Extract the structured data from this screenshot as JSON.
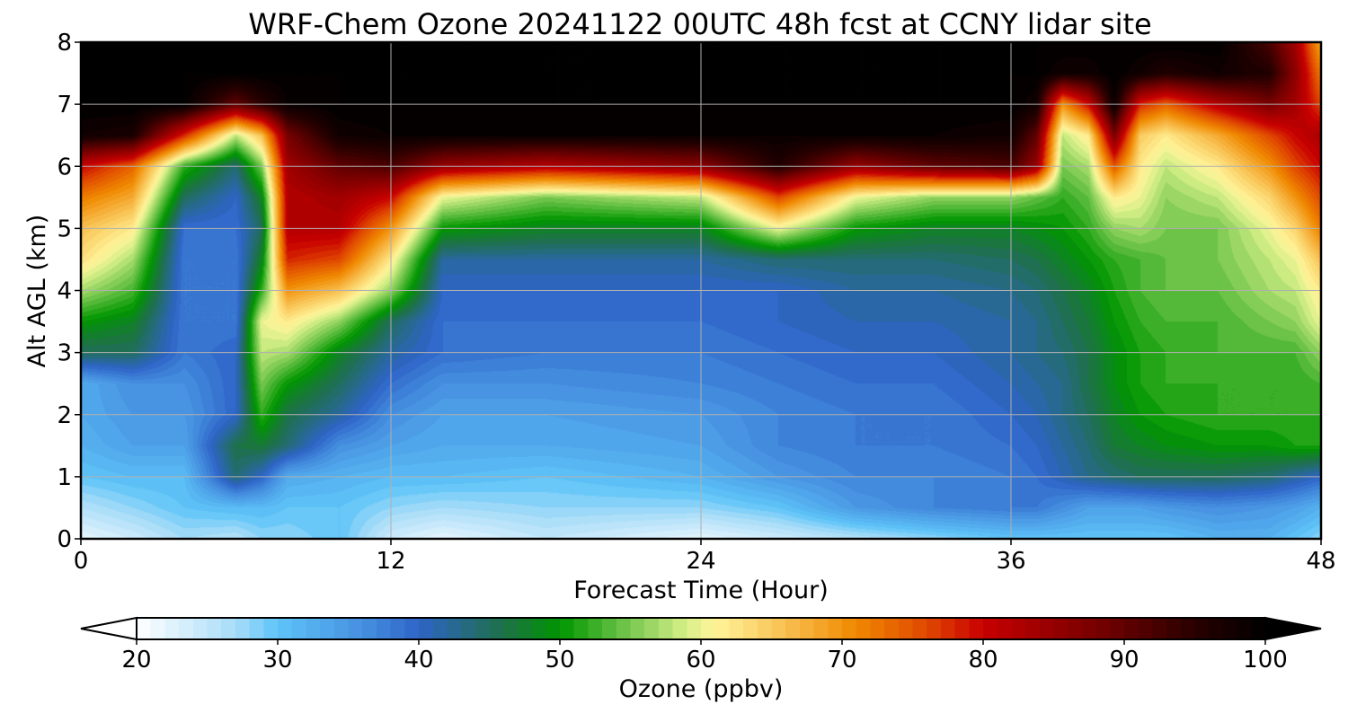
{
  "chart_data": {
    "type": "heatmap",
    "title": "WRF-Chem Ozone  20241122 00UTC 48h fcst at CCNY lidar site",
    "xlabel": "Forecast Time (Hour)",
    "ylabel": "Alt AGL (km)",
    "xlim": [
      0,
      48
    ],
    "ylim": [
      0,
      8
    ],
    "xticks": [
      0,
      12,
      24,
      36,
      48
    ],
    "yticks": [
      0,
      1,
      2,
      3,
      4,
      5,
      6,
      7,
      8
    ],
    "grid": true,
    "colorbar": {
      "label": "Ozone  (ppbv)",
      "orientation": "horizontal",
      "placement": "bottom",
      "range": [
        20,
        100
      ],
      "ticks": [
        20,
        30,
        40,
        50,
        60,
        70,
        80,
        90,
        100
      ],
      "extend": "both",
      "stops": [
        {
          "v": 20,
          "c": "#ffffff"
        },
        {
          "v": 27,
          "c": "#a8dcf8"
        },
        {
          "v": 30,
          "c": "#5ec4f8"
        },
        {
          "v": 36,
          "c": "#4690e0"
        },
        {
          "v": 40,
          "c": "#2e64c8"
        },
        {
          "v": 46,
          "c": "#1e7048"
        },
        {
          "v": 50,
          "c": "#009600"
        },
        {
          "v": 55,
          "c": "#78c850"
        },
        {
          "v": 59,
          "c": "#d8f088"
        },
        {
          "v": 61,
          "c": "#fff49a"
        },
        {
          "v": 66,
          "c": "#f8c050"
        },
        {
          "v": 71,
          "c": "#f08800"
        },
        {
          "v": 76,
          "c": "#e04800"
        },
        {
          "v": 80,
          "c": "#c80000"
        },
        {
          "v": 88,
          "c": "#780000"
        },
        {
          "v": 95,
          "c": "#280000"
        },
        {
          "v": 100,
          "c": "#000000"
        }
      ]
    },
    "x": [
      0,
      2,
      4,
      6,
      7,
      8,
      10,
      12,
      14,
      18,
      24,
      27,
      30,
      33,
      36,
      37,
      38,
      39,
      40,
      41,
      42,
      44,
      46,
      47,
      48
    ],
    "y": [
      0,
      0.5,
      1,
      1.5,
      2,
      2.5,
      3,
      3.5,
      4,
      4.5,
      5,
      5.5,
      6,
      6.5,
      7,
      7.5,
      8
    ],
    "z": [
      [
        22,
        24,
        27,
        26,
        28,
        28,
        30,
        24,
        22,
        25,
        22,
        24,
        26,
        28,
        30,
        30,
        30,
        30,
        30,
        30,
        30,
        32,
        32,
        30,
        28
      ],
      [
        26,
        28,
        30,
        31,
        31,
        30,
        30,
        28,
        27,
        28,
        28,
        30,
        35,
        37,
        38,
        38,
        36,
        34,
        34,
        34,
        35,
        36,
        35,
        34,
        32
      ],
      [
        30,
        31,
        31,
        44,
        40,
        33,
        32,
        31,
        31,
        30,
        32,
        35,
        37,
        37,
        38,
        39,
        41,
        43,
        44,
        45,
        45,
        45,
        44,
        42,
        40
      ],
      [
        32,
        34,
        34,
        46,
        47,
        44,
        36,
        34,
        33,
        33,
        34,
        37,
        38,
        38,
        39,
        40,
        42,
        44,
        47,
        48,
        49,
        50,
        50,
        51,
        51
      ],
      [
        33,
        35,
        35,
        40,
        52,
        46,
        42,
        36,
        34,
        34,
        35,
        37,
        38,
        38,
        40,
        41,
        43,
        45,
        48,
        50,
        51,
        52,
        52,
        52,
        52
      ],
      [
        33,
        36,
        36,
        40,
        55,
        50,
        45,
        39,
        36,
        36,
        37,
        38,
        39,
        39,
        41,
        42,
        43,
        46,
        49,
        51,
        52,
        52,
        52,
        52,
        53
      ],
      [
        45,
        45,
        38,
        40,
        58,
        57,
        48,
        42,
        39,
        38,
        38,
        39,
        40,
        40,
        42,
        43,
        44,
        46,
        49,
        51,
        52,
        53,
        53,
        53,
        56
      ],
      [
        50,
        48,
        38,
        38,
        60,
        62,
        56,
        45,
        39,
        39,
        39,
        40,
        41,
        41,
        42,
        43,
        45,
        47,
        50,
        52,
        53,
        53,
        55,
        56,
        60
      ],
      [
        57,
        53,
        38,
        38,
        52,
        70,
        66,
        56,
        40,
        40,
        40,
        40,
        42,
        42,
        43,
        44,
        46,
        48,
        51,
        53,
        54,
        54,
        57,
        58,
        62
      ],
      [
        63,
        57,
        38,
        38,
        48,
        78,
        76,
        62,
        42,
        42,
        42,
        44,
        44,
        44,
        45,
        46,
        48,
        50,
        52,
        53,
        54,
        55,
        58,
        60,
        66
      ],
      [
        66,
        62,
        39,
        39,
        45,
        82,
        82,
        70,
        50,
        48,
        48,
        60,
        50,
        48,
        48,
        49,
        50,
        52,
        56,
        57,
        55,
        55,
        60,
        64,
        72
      ],
      [
        72,
        68,
        45,
        40,
        48,
        82,
        84,
        80,
        60,
        55,
        58,
        76,
        60,
        56,
        56,
        54,
        52,
        54,
        62,
        60,
        56,
        58,
        64,
        70,
        76
      ],
      [
        80,
        74,
        52,
        44,
        55,
        84,
        90,
        92,
        85,
        82,
        86,
        96,
        85,
        90,
        92,
        85,
        55,
        57,
        75,
        62,
        58,
        62,
        70,
        76,
        80
      ],
      [
        98,
        97,
        78,
        58,
        66,
        88,
        98,
        99,
        99,
        99,
        99,
        99,
        99,
        99,
        98,
        90,
        58,
        62,
        88,
        65,
        62,
        68,
        76,
        80,
        83
      ],
      [
        100,
        100,
        100,
        90,
        95,
        99,
        100,
        100,
        100,
        100,
        100,
        100,
        100,
        100,
        100,
        98,
        70,
        80,
        99,
        78,
        74,
        82,
        88,
        84,
        76
      ],
      [
        100,
        100,
        100,
        100,
        100,
        100,
        100,
        100,
        100,
        100,
        100,
        100,
        100,
        100,
        100,
        100,
        98,
        98,
        100,
        98,
        96,
        98,
        96,
        86,
        72
      ],
      [
        100,
        100,
        100,
        100,
        100,
        100,
        100,
        100,
        100,
        100,
        100,
        100,
        100,
        100,
        100,
        100,
        100,
        100,
        100,
        100,
        100,
        100,
        92,
        84,
        68
      ]
    ]
  }
}
